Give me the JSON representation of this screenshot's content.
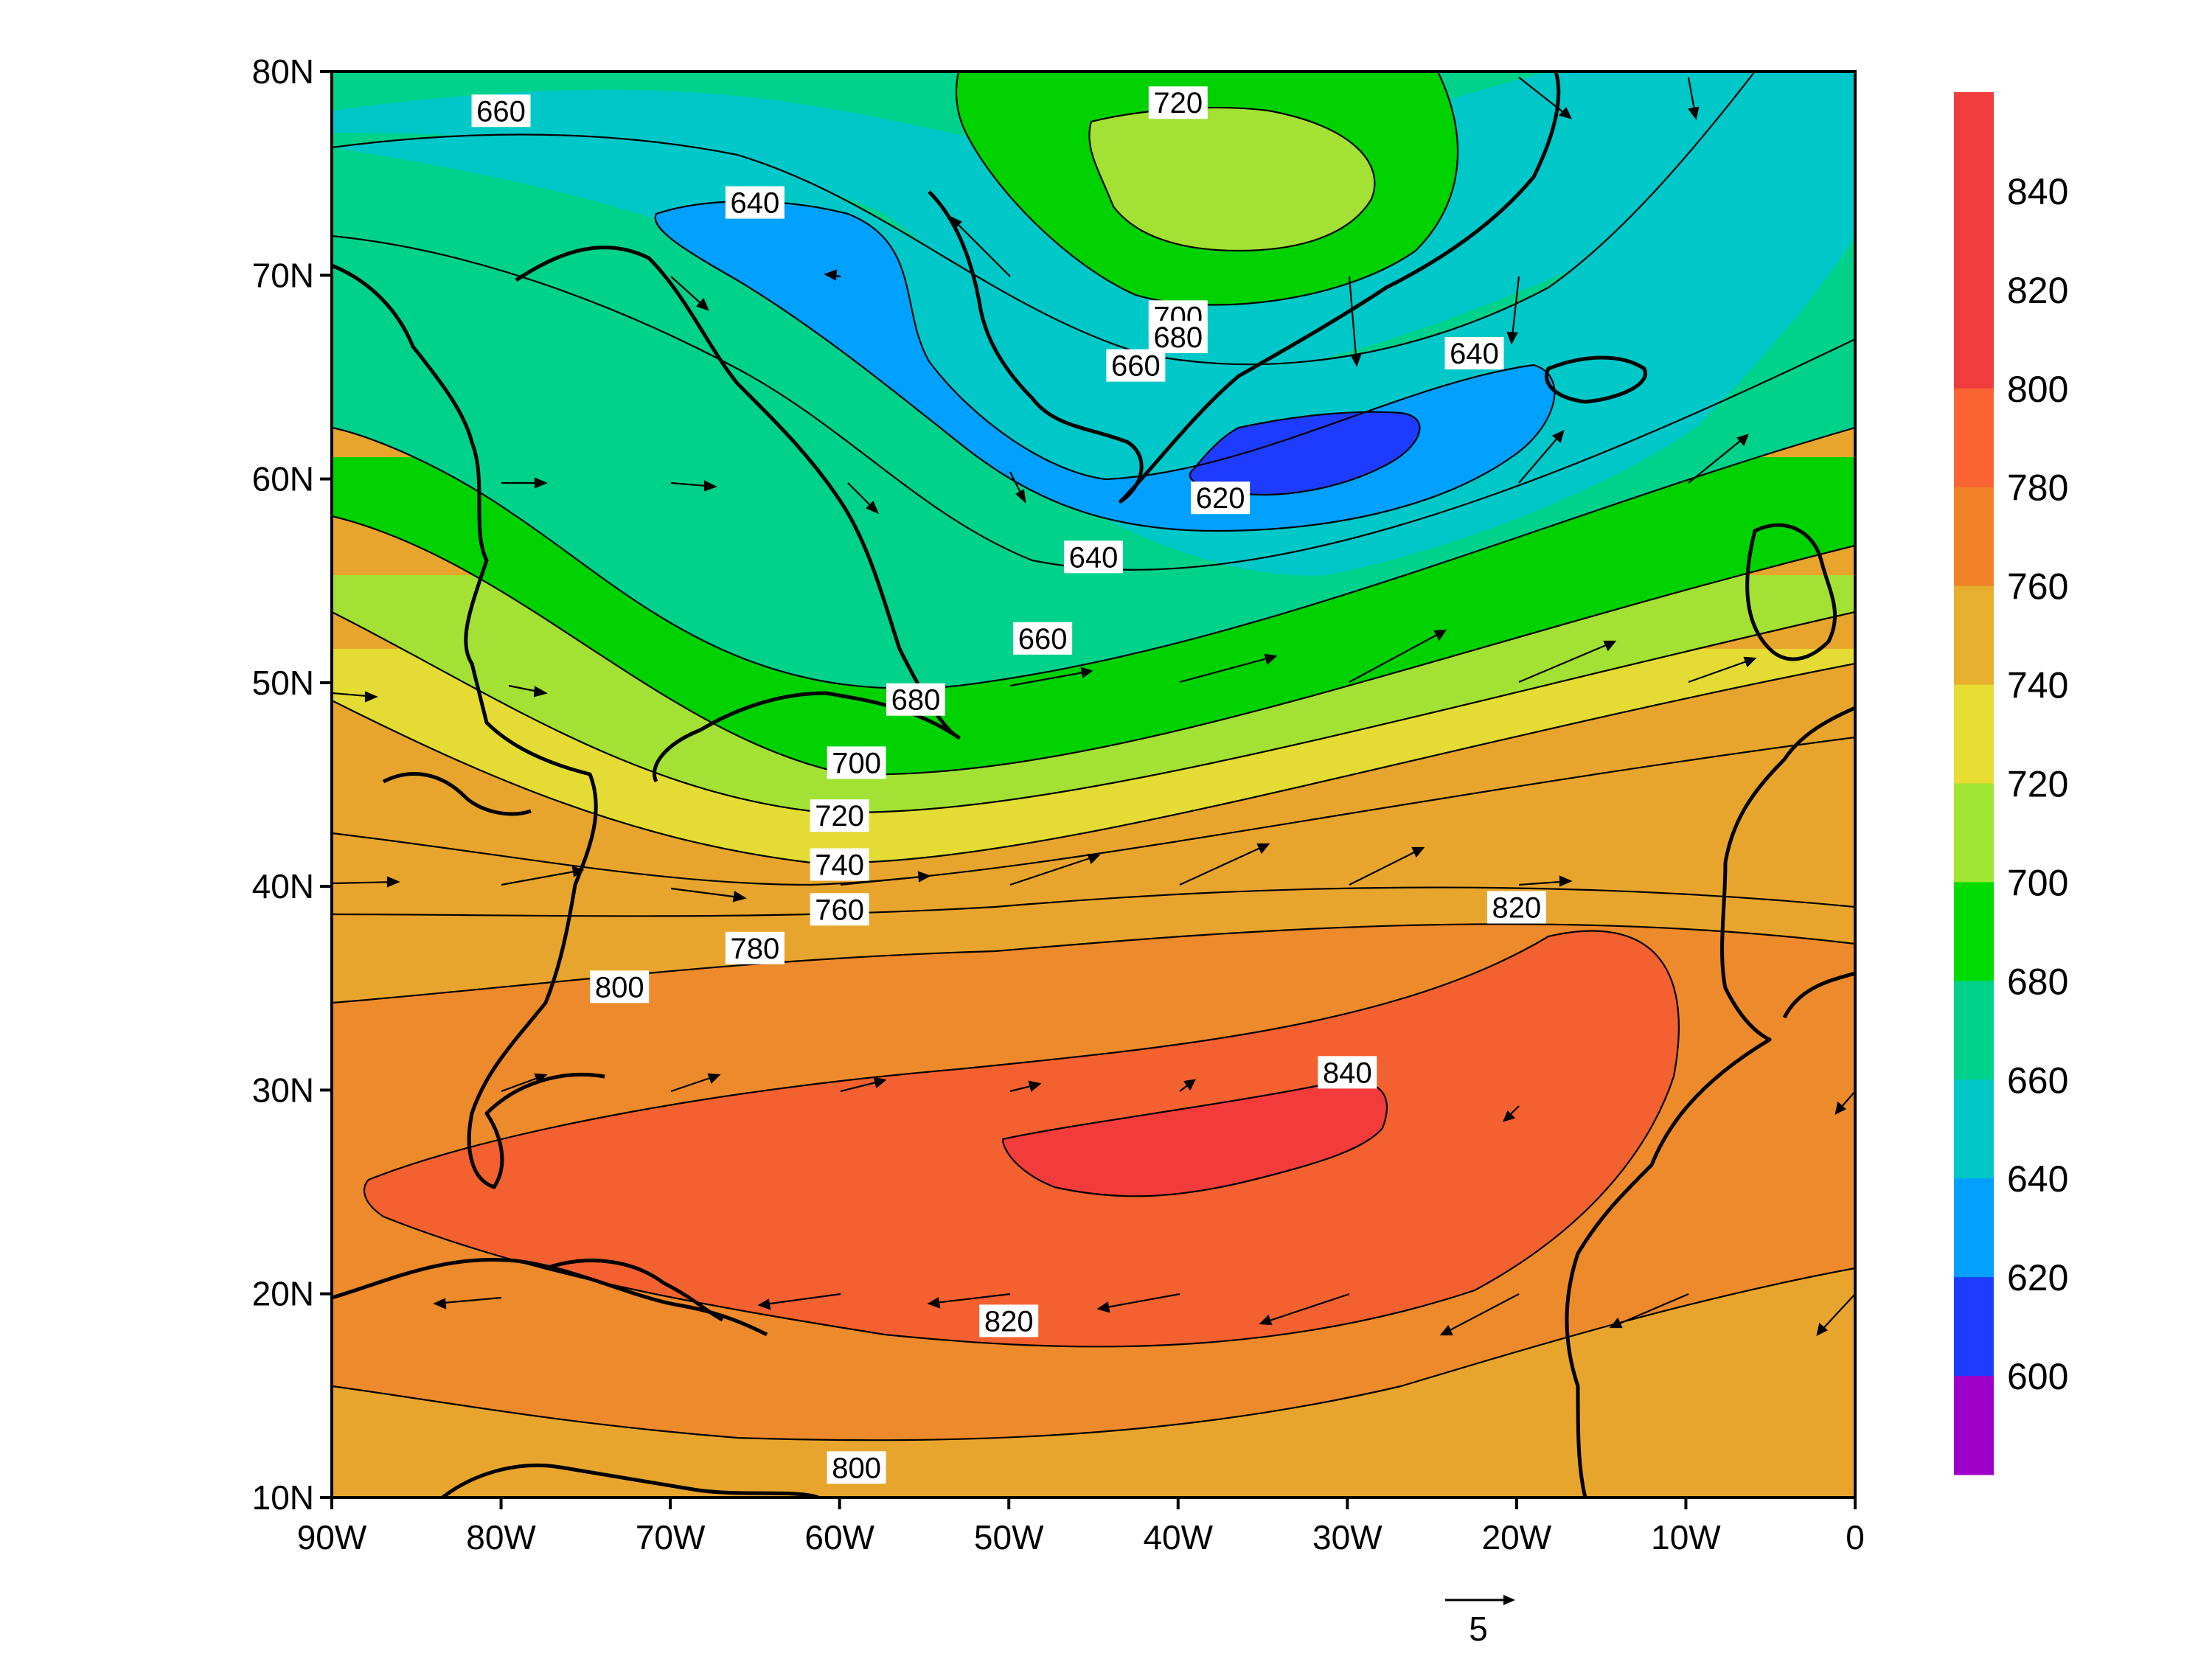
{
  "map": {
    "field": "geopotential height contours with wind vectors",
    "x_axis": {
      "ticks": [
        "90W",
        "80W",
        "70W",
        "60W",
        "50W",
        "40W",
        "30W",
        "20W",
        "10W",
        "0"
      ],
      "lon_values": [
        -90,
        -80,
        -70,
        -60,
        -50,
        -40,
        -30,
        -20,
        -10,
        0
      ]
    },
    "y_axis": {
      "ticks": [
        "10N",
        "20N",
        "30N",
        "40N",
        "50N",
        "60N",
        "70N",
        "80N"
      ],
      "lat_values": [
        10,
        20,
        30,
        40,
        50,
        60,
        70,
        80
      ]
    },
    "lon_range": [
      -90,
      0
    ],
    "lat_range": [
      10,
      80
    ],
    "reference_vector": {
      "label": "5"
    }
  },
  "colorbar": {
    "levels": [
      {
        "label": "",
        "color": "#9d00c8"
      },
      {
        "label": "600",
        "color": "#1e3cff"
      },
      {
        "label": "620",
        "color": "#00a0ff"
      },
      {
        "label": "640",
        "color": "#00c8c8"
      },
      {
        "label": "660",
        "color": "#00d28c"
      },
      {
        "label": "680",
        "color": "#00dc00"
      },
      {
        "label": "700",
        "color": "#a0e632"
      },
      {
        "label": "720",
        "color": "#e6dc32"
      },
      {
        "label": "740",
        "color": "#e6af2d"
      },
      {
        "label": "760",
        "color": "#f08228"
      },
      {
        "label": "780",
        "color": "#fa6432"
      },
      {
        "label": "800",
        "color": "#f03c3c"
      },
      {
        "label": "820",
        "color": "#f03c3c"
      },
      {
        "label": "840",
        "color": "#f03c3c"
      }
    ],
    "tick_labels": [
      "600",
      "620",
      "640",
      "660",
      "680",
      "700",
      "720",
      "740",
      "760",
      "780",
      "800",
      "820",
      "840"
    ]
  },
  "contour_labels": [
    {
      "text": "660",
      "lon": -80,
      "lat": 78.0
    },
    {
      "text": "720",
      "lon": -40,
      "lat": 78.4
    },
    {
      "text": "640",
      "lon": -65,
      "lat": 73.5
    },
    {
      "text": "700",
      "lon": -40,
      "lat": 67.9
    },
    {
      "text": "680",
      "lon": -40,
      "lat": 66.9
    },
    {
      "text": "660",
      "lon": -42.5,
      "lat": 65.5
    },
    {
      "text": "640",
      "lon": -22.5,
      "lat": 66.1
    },
    {
      "text": "620",
      "lon": -37.5,
      "lat": 59.0
    },
    {
      "text": "640",
      "lon": -45,
      "lat": 56.1
    },
    {
      "text": "660",
      "lon": -48,
      "lat": 52.1
    },
    {
      "text": "680",
      "lon": -55.5,
      "lat": 49.1
    },
    {
      "text": "700",
      "lon": -59,
      "lat": 46.0
    },
    {
      "text": "720",
      "lon": -60,
      "lat": 43.4
    },
    {
      "text": "740",
      "lon": -60,
      "lat": 41.0
    },
    {
      "text": "760",
      "lon": -60,
      "lat": 38.8
    },
    {
      "text": "780",
      "lon": -65,
      "lat": 36.9
    },
    {
      "text": "800",
      "lon": -73,
      "lat": 35.0
    },
    {
      "text": "820",
      "lon": -20,
      "lat": 38.9
    },
    {
      "text": "840",
      "lon": -30,
      "lat": 30.8
    },
    {
      "text": "820",
      "lon": -50,
      "lat": 18.6
    },
    {
      "text": "800",
      "lon": -59,
      "lat": 11.4
    }
  ]
}
